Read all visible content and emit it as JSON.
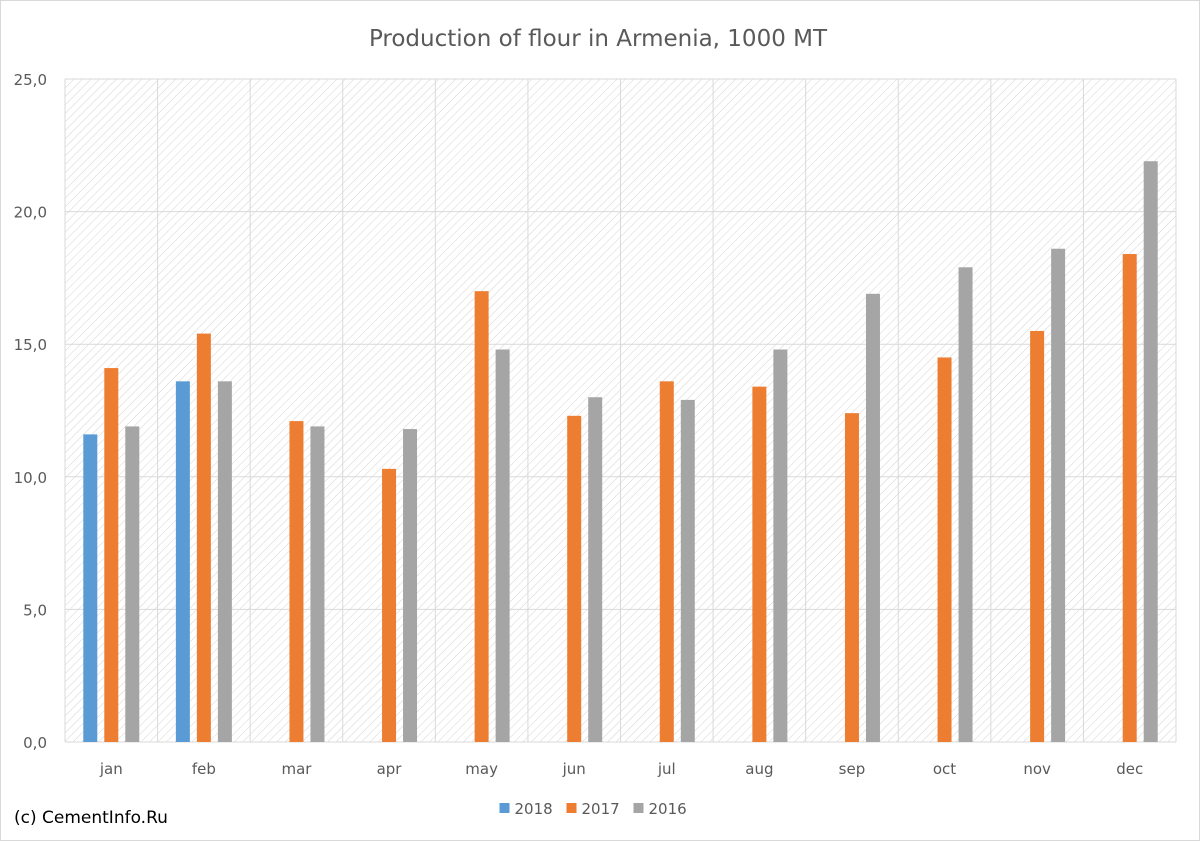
{
  "chart_data": {
    "type": "bar",
    "title": "Production of flour in Armenia, 1000 MT",
    "categories": [
      "jan",
      "feb",
      "mar",
      "apr",
      "may",
      "jun",
      "jul",
      "aug",
      "sep",
      "oct",
      "nov",
      "dec"
    ],
    "series": [
      {
        "name": "2018",
        "color": "#5b9bd5",
        "values": [
          11.6,
          13.6,
          null,
          null,
          null,
          null,
          null,
          null,
          null,
          null,
          null,
          null
        ]
      },
      {
        "name": "2017",
        "color": "#ed7d31",
        "values": [
          14.1,
          15.4,
          12.1,
          10.3,
          17.0,
          12.3,
          13.6,
          13.4,
          12.4,
          14.5,
          15.5,
          18.4
        ]
      },
      {
        "name": "2016",
        "color": "#a5a5a5",
        "values": [
          11.9,
          13.6,
          11.9,
          11.8,
          14.8,
          13.0,
          12.9,
          14.8,
          16.9,
          17.9,
          18.6,
          21.9
        ]
      }
    ],
    "ylim": [
      0,
      25
    ],
    "yticks": [
      "0,0",
      "5,0",
      "10,0",
      "15,0",
      "20,0",
      "25,0"
    ],
    "grid": true,
    "legend": "bottom"
  },
  "credit": "(c) CementInfo.Ru"
}
